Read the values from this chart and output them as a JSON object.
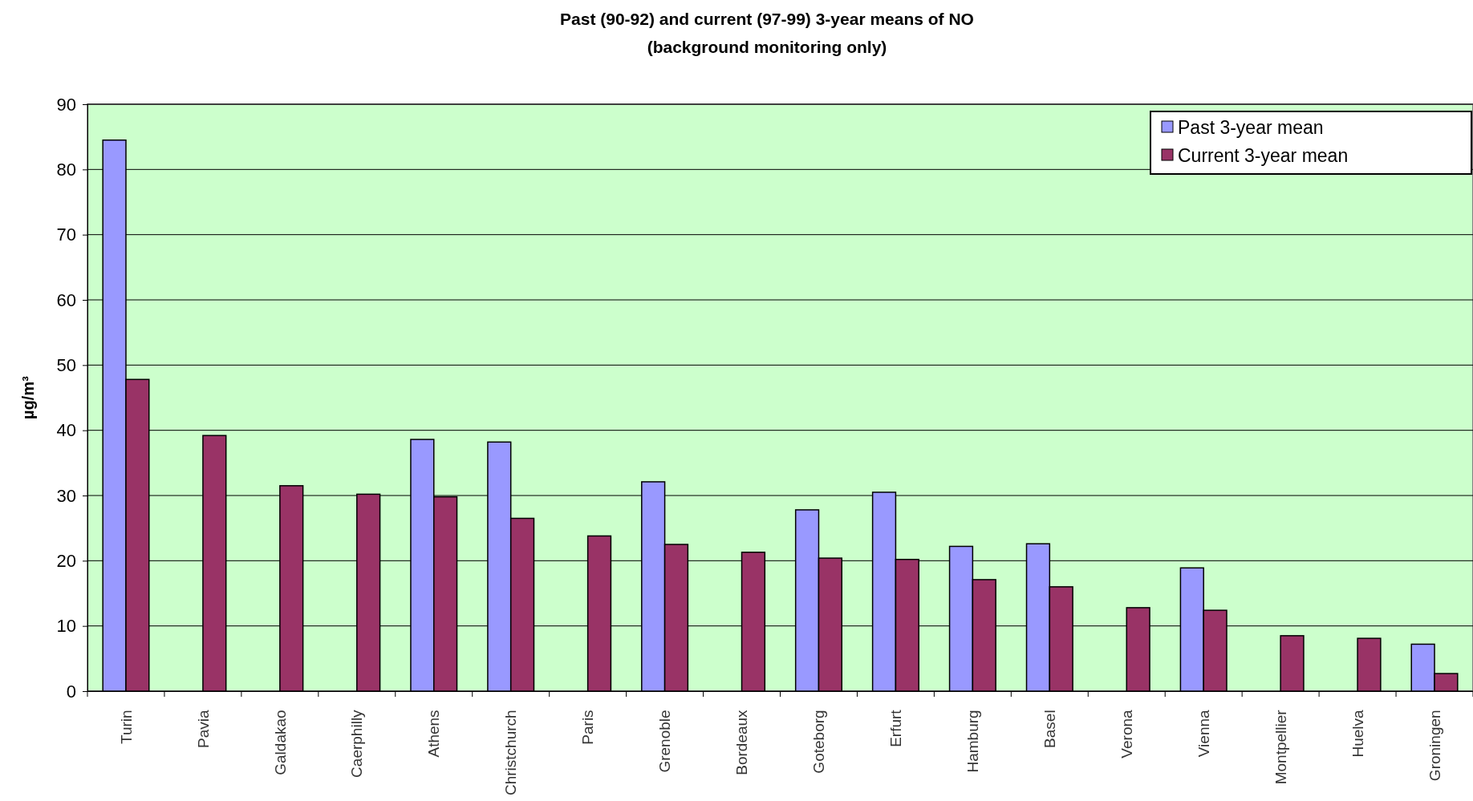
{
  "chart_data": {
    "type": "bar",
    "title": "Past (90-92) and current (97-99) 3-year means of NO",
    "subtitle": "(background monitoring only)",
    "ylabel": "µg/m³",
    "categories": [
      "Turin",
      "Pavia",
      "Galdakao",
      "Caerphilly",
      "Athens",
      "Christchurch",
      "Paris",
      "Grenoble",
      "Bordeaux",
      "Goteborg",
      "Erfurt",
      "Hamburg",
      "Basel",
      "Verona",
      "Vienna",
      "Montpellier",
      "Huelva",
      "Groningen"
    ],
    "series": [
      {
        "name": "Past 3-year mean",
        "color": "#9999ff",
        "values": [
          84.5,
          null,
          null,
          null,
          38.6,
          38.2,
          null,
          32.1,
          null,
          27.8,
          30.5,
          22.2,
          22.6,
          null,
          18.9,
          null,
          null,
          7.2
        ]
      },
      {
        "name": "Current 3-year mean",
        "color": "#993366",
        "values": [
          47.8,
          39.2,
          31.5,
          30.2,
          29.8,
          26.5,
          23.8,
          22.5,
          21.3,
          20.4,
          20.2,
          17.1,
          16.0,
          12.8,
          12.4,
          8.5,
          8.1,
          2.7
        ]
      }
    ],
    "ylim": [
      0,
      90
    ],
    "yticks": [
      0,
      10,
      20,
      30,
      40,
      50,
      60,
      70,
      80,
      90
    ],
    "grid": "y",
    "legend": "top right"
  }
}
